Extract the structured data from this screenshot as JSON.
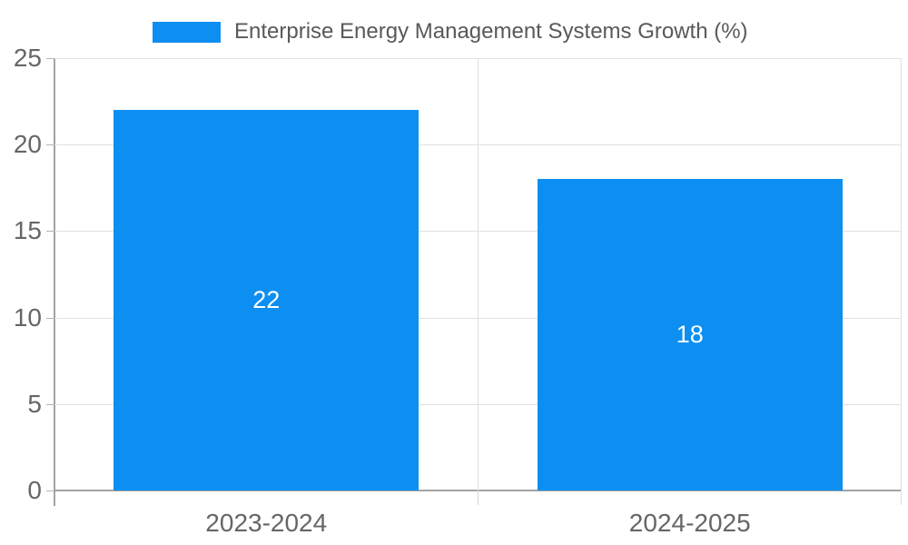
{
  "legend": {
    "series_label": "Enterprise Energy Management Systems Growth (%)"
  },
  "chart_data": {
    "type": "bar",
    "title": "Enterprise Energy Management Systems Growth (%)",
    "categories": [
      "2023-2024",
      "2024-2025"
    ],
    "values": [
      22,
      18
    ],
    "value_labels": [
      "22",
      "18"
    ],
    "xlabel": "",
    "ylabel": "",
    "ylim": [
      0,
      25
    ],
    "yticks": [
      0,
      5,
      10,
      15,
      20,
      25
    ],
    "grid": true,
    "legend_position": "top-center",
    "bar_color": "#0d8ff2",
    "bar_width_frac": 0.72,
    "value_label_color": "#ffffff"
  },
  "colors": {
    "bar": "#0d8ff2",
    "gridline": "#e0e0e0",
    "axis_line": "#a3a3a3",
    "tick_text": "#666666",
    "title_text": "#595959",
    "background": "#ffffff"
  }
}
